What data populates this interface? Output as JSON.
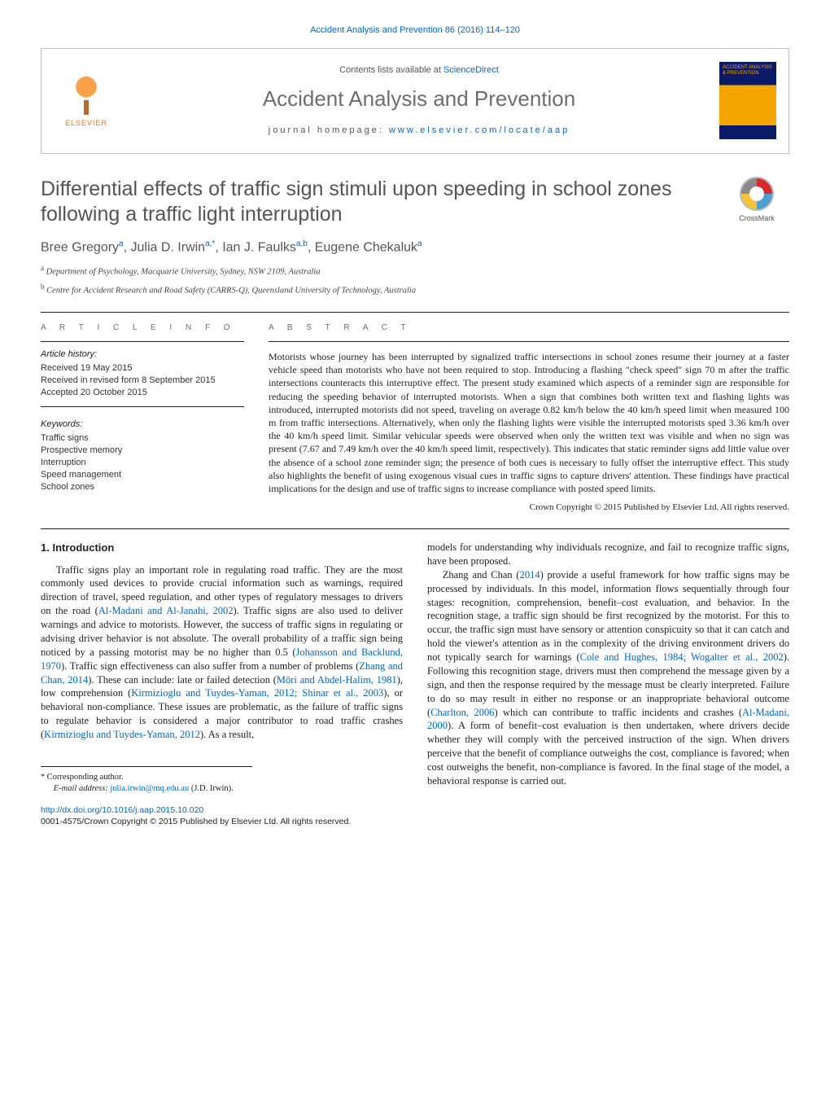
{
  "colors": {
    "link": "#0066cc",
    "body_text": "#222222",
    "muted": "#555555",
    "rule": "#222222",
    "header_border": "#bfbfbf",
    "elsevier_orange": "#e6711b",
    "cover_navy": "#0a1a66",
    "cover_amber": "#f5a500"
  },
  "typography": {
    "body_family": "Times New Roman",
    "sans_family": "Arial",
    "title_fontsize_pt": 19,
    "journal_name_fontsize_pt": 20,
    "body_fontsize_pt": 9.5,
    "abstract_fontsize_pt": 9
  },
  "topline": {
    "text": "Accident Analysis and Prevention 86 (2016) 114–120"
  },
  "header": {
    "contents_prefix": "Contents lists available at ",
    "contents_link": "ScienceDirect",
    "journal_name": "Accident Analysis and Prevention",
    "homepage_label": "journal homepage: ",
    "homepage_url": "www.elsevier.com/locate/aap",
    "publisher_logo_text": "ELSEVIER",
    "cover_text": "ACCIDENT ANALYSIS & PREVENTION"
  },
  "crossmark": {
    "label": "CrossMark"
  },
  "article": {
    "title": "Differential effects of traffic sign stimuli upon speeding in school zones following a traffic light interruption",
    "authors_html": "Bree Gregory<sup>a</sup>, Julia D. Irwin<sup>a,*</sup>, Ian J. Faulks<sup>a,b</sup>, Eugene Chekaluk<sup>a</sup>",
    "affiliations": [
      {
        "marker": "a",
        "text": "Department of Psychology, Macquarie University, Sydney, NSW 2109, Australia"
      },
      {
        "marker": "b",
        "text": "Centre for Accident Research and Road Safety (CARRS-Q), Queensland University of Technology, Australia"
      }
    ]
  },
  "info": {
    "label": "A R T I C L E   I N F O",
    "history_heading": "Article history:",
    "history": [
      "Received 19 May 2015",
      "Received in revised form 8 September 2015",
      "Accepted 20 October 2015"
    ],
    "keywords_heading": "Keywords:",
    "keywords": [
      "Traffic signs",
      "Prospective memory",
      "Interruption",
      "Speed management",
      "School zones"
    ]
  },
  "abstract": {
    "label": "A B S T R A C T",
    "text": "Motorists whose journey has been interrupted by signalized traffic intersections in school zones resume their journey at a faster vehicle speed than motorists who have not been required to stop. Introducing a flashing \"check speed\" sign 70 m after the traffic intersections counteracts this interruptive effect. The present study examined which aspects of a reminder sign are responsible for reducing the speeding behavior of interrupted motorists. When a sign that combines both written text and flashing lights was introduced, interrupted motorists did not speed, traveling on average 0.82 km/h below the 40 km/h speed limit when measured 100 m from traffic intersections. Alternatively, when only the flashing lights were visible the interrupted motorists sped 3.36 km/h over the 40 km/h speed limit. Similar vehicular speeds were observed when only the written text was visible and when no sign was present (7.67 and 7.49 km/h over the 40 km/h speed limit, respectively). This indicates that static reminder signs add little value over the absence of a school zone reminder sign; the presence of both cues is necessary to fully offset the interruptive effect. This study also highlights the benefit of using exogenous visual cues in traffic signs to capture drivers' attention. These findings have practical implications for the design and use of traffic signs to increase compliance with posted speed limits.",
    "copyright": "Crown Copyright © 2015 Published by Elsevier Ltd. All rights reserved."
  },
  "body": {
    "heading": "1. Introduction",
    "col1_p1": "Traffic signs play an important role in regulating road traffic. They are the most commonly used devices to provide crucial information such as warnings, required direction of travel, speed regulation, and other types of regulatory messages to drivers on the road (Al-Madani and Al-Janahi, 2002). Traffic signs are also used to deliver warnings and advice to motorists. However, the success of traffic signs in regulating or advising driver behavior is not absolute. The overall probability of a traffic sign being noticed by a passing motorist may be no higher than 0.5 (Johansson and Backlund, 1970). Traffic sign effectiveness can also suffer from a number of problems (Zhang and Chan, 2014). These can include: late or failed detection (Mōri and Abdel-Halim, 1981), low comprehension (Kirmizioglu and Tuydes-Yaman, 2012; Shinar et al., 2003), or behavioral non-compliance. These issues are problematic, as the failure of traffic signs to regulate behavior is considered a major contributor to road traffic crashes (Kirmizioglu and Tuydes-Yaman, 2012). As a result,",
    "col2_p1": "models for understanding why individuals recognize, and fail to recognize traffic signs, have been proposed.",
    "col2_p2": "Zhang and Chan (2014) provide a useful framework for how traffic signs may be processed by individuals. In this model, information flows sequentially through four stages: recognition, comprehension, benefit–cost evaluation, and behavior. In the recognition stage, a traffic sign should be first recognized by the motorist. For this to occur, the traffic sign must have sensory or attention conspicuity so that it can catch and hold the viewer's attention as in the complexity of the driving environment drivers do not typically search for warnings (Cole and Hughes, 1984; Wogalter et al., 2002). Following this recognition stage, drivers must then comprehend the message given by a sign, and then the response required by the message must be clearly interpreted. Failure to do so may result in either no response or an inappropriate behavioral outcome (Charlton, 2006) which can contribute to traffic incidents and crashes (Al-Madani, 2000). A form of benefit–cost evaluation is then undertaken, where drivers decide whether they will comply with the perceived instruction of the sign. When drivers perceive that the benefit of compliance outweighs the cost, compliance is favored; when cost outweighs the benefit, non-compliance is favored. In the final stage of the model, a behavioral response is carried out."
  },
  "footnote": {
    "corresponding": "Corresponding author.",
    "email_label": "E-mail address:",
    "email": "julia.irwin@mq.edu.au",
    "email_name": "(J.D. Irwin)."
  },
  "bottom": {
    "doi": "http://dx.doi.org/10.1016/j.aap.2015.10.020",
    "issn_line": "0001-4575/Crown Copyright © 2015 Published by Elsevier Ltd. All rights reserved."
  }
}
